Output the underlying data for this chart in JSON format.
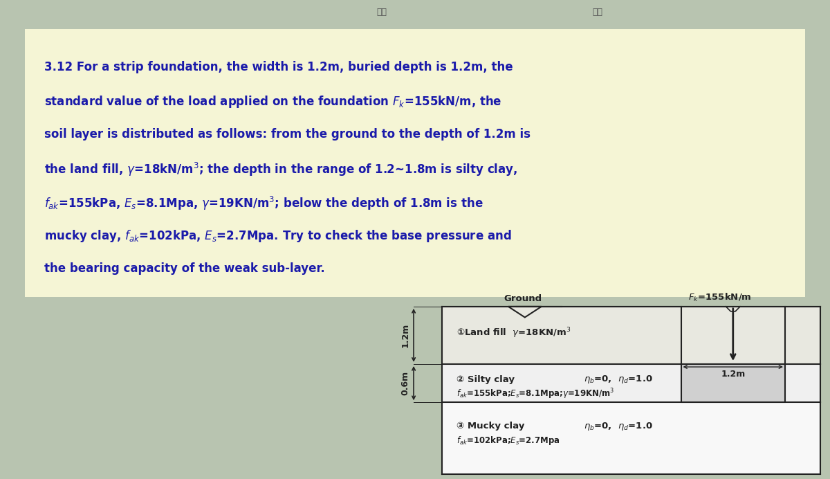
{
  "page_bg": "#b8c4b0",
  "text_box_bg": "#f5f5d5",
  "text_box_edge": "#c8c870",
  "problem_text_lines": [
    "3.12 For a strip foundation, the width is 1.2m, buried depth is 1.2m, the",
    "standard value of the load applied on the foundation $F_k$=155kN/m, the",
    "soil layer is distributed as follows: from the ground to the depth of 1.2m is",
    "the land fill, $\\gamma$=18kN/m$^3$; the depth in the range of 1.2~1.8m is silty clay,",
    "$f_{ak}$=155kPa, $E_s$=8.1Mpa, $\\gamma$=19KN/m$^3$; below the depth of 1.8m is the",
    "mucky clay, $f_{ak}$=102kPa, $E_s$=2.7Mpa. Try to check the base pressure and",
    "the bearing capacity of the weak sub-layer."
  ],
  "text_color": "#1a1aaa",
  "diagram_bg": "#f0f0f0",
  "line_color": "#222222",
  "ground_label": "Ground",
  "fk_label": "$F_k$=155kN/m",
  "layer1_label": "①Land fill  $\\gamma$=18KN/m$^3$",
  "layer2_label": "② Silty clay",
  "layer2_params": "$\\eta_b$=0,  $\\eta_d$=1.0",
  "layer2_props": "$f_{ak}$=155kPa;$E_s$=8.1Mpa;$\\gamma$=19KN/m$^3$",
  "layer3_label": "③ Mucky clay",
  "layer3_params": "$\\eta_b$=0,  $\\eta_d$=1.0",
  "layer3_props": "$f_{ak}$=102kPa;$E_s$=2.7Mpa",
  "dim_12m_top": "1.2m",
  "dim_06m": "0.6m",
  "dim_found_width": "1.2m",
  "header_left": "绘图",
  "header_right": "编辑"
}
